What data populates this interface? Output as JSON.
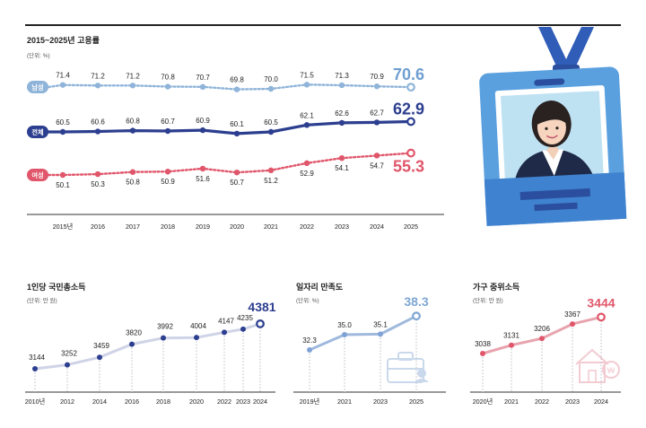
{
  "palette": {
    "male": "#8fb4d9",
    "all": "#2c3e8f",
    "female": "#e0566a",
    "grey": "#d6d8dc",
    "sat": "#9fb9dd",
    "income": "#e8a3ae",
    "accent": "#2c3e8f"
  },
  "chart_data": [
    {
      "type": "line",
      "title": "2015~2025년 고용률",
      "unit": "(단위: %)",
      "categories": [
        "2015년",
        "2016",
        "2017",
        "2018",
        "2019",
        "2020",
        "2021",
        "2022",
        "2023",
        "2024",
        "2025"
      ],
      "series": [
        {
          "name": "남성",
          "values": [
            71.4,
            71.2,
            71.2,
            70.8,
            70.7,
            69.8,
            70.0,
            71.5,
            71.3,
            70.9,
            70.6
          ],
          "labels": [
            "71.4",
            "71.2",
            "71.2",
            "70.8",
            "70.7",
            "69.8",
            "70.0",
            "71.5",
            "71.3",
            "70.9",
            "70.6"
          ]
        },
        {
          "name": "전체",
          "values": [
            60.5,
            60.6,
            60.8,
            60.7,
            60.9,
            60.1,
            60.5,
            62.1,
            62.6,
            62.7,
            62.9
          ],
          "labels": [
            "60.5",
            "60.6",
            "60.8",
            "60.7",
            "60.9",
            "60.1",
            "60.5",
            "62.1",
            "62.6",
            "62.7",
            "62.9"
          ]
        },
        {
          "name": "여성",
          "values": [
            50.1,
            50.3,
            50.8,
            50.9,
            51.6,
            50.7,
            51.2,
            52.9,
            54.1,
            54.7,
            55.3
          ],
          "labels": [
            "50.1",
            "50.3",
            "50.8",
            "50.9",
            "51.6",
            "50.7",
            "51.2",
            "52.9",
            "54.1",
            "54.7",
            "55.3"
          ]
        }
      ]
    },
    {
      "type": "line",
      "title": "1인당 국민총소득",
      "unit": "(단위: 만 원)",
      "categories": [
        "2010년",
        "2012",
        "2014",
        "2016",
        "2018",
        "2020",
        "2022",
        "2023",
        "2024"
      ],
      "values": [
        3144,
        3252,
        3459,
        3820,
        3992,
        4004,
        4147,
        4235,
        4381
      ],
      "labels": [
        "3144",
        "3252",
        "3459",
        "3820",
        "3992",
        "4004",
        "4147",
        "4235",
        "4381"
      ]
    },
    {
      "type": "line",
      "title": "일자리 만족도",
      "unit": "(단위: %)",
      "categories": [
        "2019년",
        "2021",
        "2023",
        "2025"
      ],
      "values": [
        32.3,
        35.0,
        35.1,
        38.3
      ],
      "labels": [
        "32.3",
        "35.0",
        "35.1",
        "38.3"
      ]
    },
    {
      "type": "line",
      "title": "가구 중위소득",
      "unit": "(단위: 만 원)",
      "categories": [
        "2020년",
        "2021",
        "2022",
        "2023",
        "2024"
      ],
      "values": [
        3038,
        3131,
        3206,
        3367,
        3444
      ],
      "labels": [
        "3038",
        "3131",
        "3206",
        "3367",
        "3444"
      ]
    }
  ]
}
